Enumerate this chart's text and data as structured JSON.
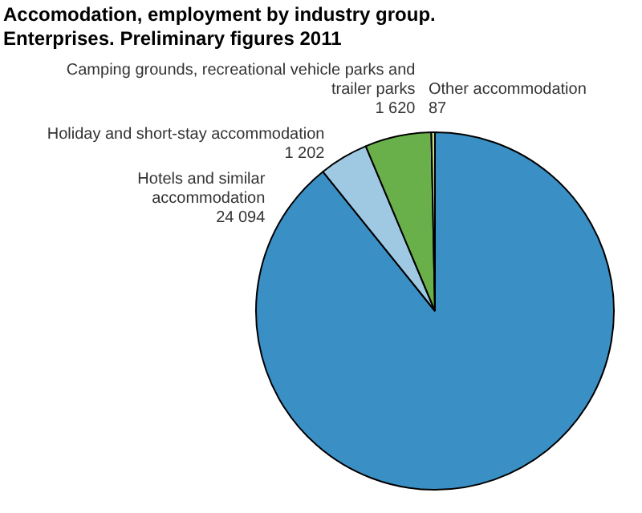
{
  "chart_data": {
    "type": "pie",
    "title": "Accomodation, employment by industry group. Enterprises. Preliminary figures 2011",
    "categories": [
      "Hotels and similar accommodation",
      "Holiday and short-stay accommodation",
      "Camping grounds, recreational vehicle parks and trailer parks",
      "Other accommodation"
    ],
    "values": [
      24094,
      1202,
      1620,
      87
    ],
    "colors": [
      "#3a8fc5",
      "#9fc8e3",
      "#6ab04a",
      "#c8d98c"
    ],
    "value_labels": [
      "24 094",
      "1 202",
      "1 620",
      "87"
    ]
  }
}
